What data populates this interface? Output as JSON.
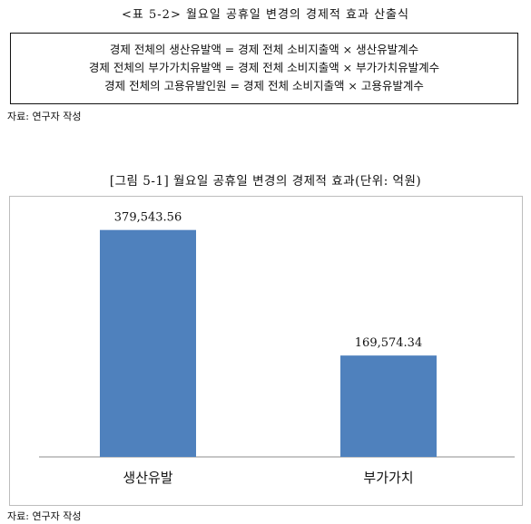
{
  "table_title": "<표 5-2> 월요일 공휴일 변경의 경제적 효과 산출식",
  "formulas": [
    "경제 전체의 생산유발액 = 경제 전체 소비지출액 × 생산유발계수",
    "경제 전체의 부가가치유발액 = 경제 전체 소비지출액 × 부가가치유발계수",
    "경제 전체의 고용유발인원 = 경제 전체 소비지출액 × 고용유발계수"
  ],
  "source_1": "자료: 연구자 작성",
  "figure_title": "[그림 5-1] 월요일 공휴일 변경의 경제적 효과(단위: 억원)",
  "source_2": "자료: 연구자 작성",
  "chart_data": {
    "type": "bar",
    "title": "[그림 5-1] 월요일 공휴일 변경의 경제적 효과(단위: 억원)",
    "categories": [
      "생산유발",
      "부가가치"
    ],
    "values": [
      379543.56,
      169574.34
    ],
    "data_labels": [
      "379,543.56",
      "169,574.34"
    ],
    "xlabel": "",
    "ylabel": "",
    "ylim": [
      0,
      420000
    ],
    "grid": false,
    "legend": "none",
    "bar_color": "#4f81bd"
  }
}
